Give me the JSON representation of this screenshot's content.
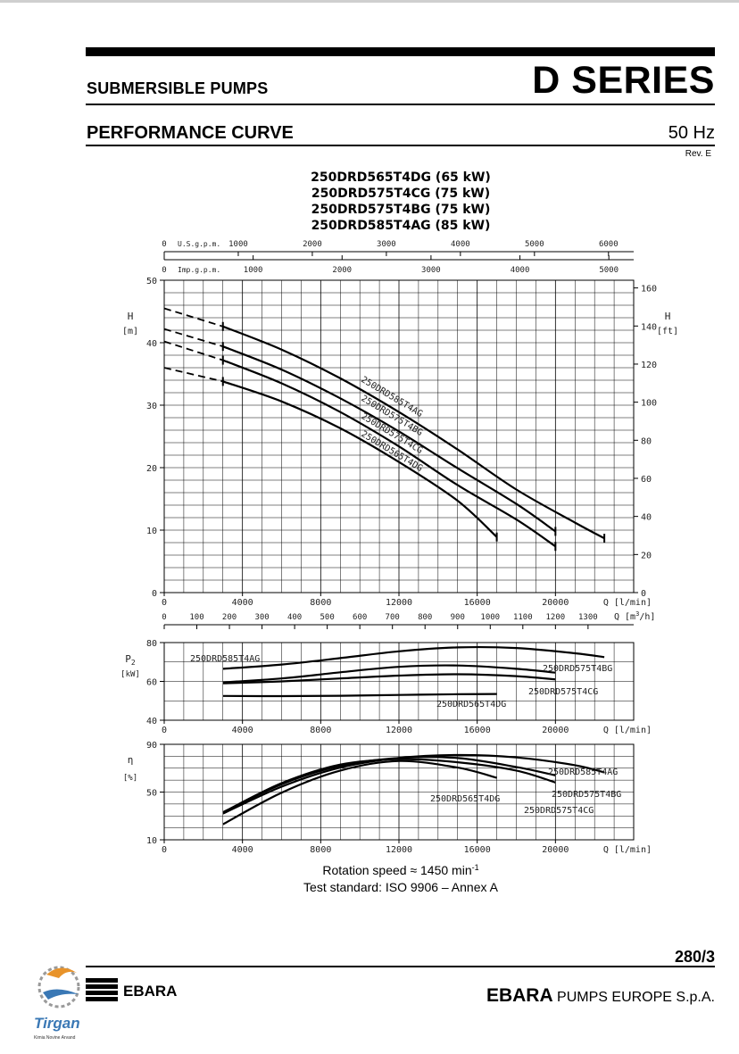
{
  "header": {
    "subtitle": "SUBMERSIBLE PUMPS",
    "series": "D SERIES",
    "section": "PERFORMANCE CURVE",
    "frequency": "50 Hz",
    "revision": "Rev. E"
  },
  "models": [
    "250DRD565T4DG (65 kW)",
    "250DRD575T4CG (75 kW)",
    "250DRD575T4BG (75 kW)",
    "250DRD585T4AG (85 kW)"
  ],
  "footer": {
    "rotation": "Rotation speed ≈ 1450 min",
    "rotation_exp": "-1",
    "standard": "Test standard: ISO 9906 – Annex A",
    "page": "280/3",
    "company_bold": "EBARA",
    "company_rest": " PUMPS EUROPE S.p.A.",
    "ebara_logo_text": "EBARA",
    "tirgan_text": "Tirgan",
    "tirgan_sub": "Kimia Novine Arvand"
  },
  "axes": {
    "usgpm_label": "U.S.g.p.m.",
    "usgpm_ticks": [
      "0",
      "1000",
      "2000",
      "3000",
      "4000",
      "5000",
      "6000"
    ],
    "impgpm_label": "Imp.g.p.m.",
    "impgpm_ticks": [
      "0",
      "1000",
      "2000",
      "3000",
      "4000",
      "5000"
    ],
    "q_lmin_label": "Q [l/min]",
    "q_lmin_ticks": [
      "0",
      "4000",
      "8000",
      "12000",
      "16000",
      "20000"
    ],
    "q_m3h_label_main": "Q [m",
    "q_m3h_label_sup": "3",
    "q_m3h_label_end": "/h]",
    "q_m3h_ticks": [
      "0",
      "100",
      "200",
      "300",
      "400",
      "500",
      "600",
      "700",
      "800",
      "900",
      "1000",
      "1100",
      "1200",
      "1300"
    ],
    "h_m_label": "H",
    "h_m_unit": "[m]",
    "h_m_ticks": [
      "0",
      "10",
      "20",
      "30",
      "40",
      "50"
    ],
    "h_ft_label": "H",
    "h_ft_unit": "[ft]",
    "h_ft_ticks": [
      "0",
      "20",
      "40",
      "60",
      "80",
      "100",
      "120",
      "140",
      "160"
    ],
    "p2_label": "P",
    "p2_sub": "2",
    "p2_unit": "[kW]",
    "p2_ticks": [
      "40",
      "60",
      "80"
    ],
    "eta_label": "η",
    "eta_unit": "[%]",
    "eta_ticks": [
      "10",
      "50",
      "90"
    ]
  },
  "chart_data": [
    {
      "type": "line",
      "title": "H–Q head curve",
      "xlabel": "Q [l/min]",
      "ylabel": "H [m]",
      "xlim": [
        0,
        24000
      ],
      "ylim": [
        0,
        50
      ],
      "secondary_y": {
        "label": "H [ft]",
        "lim": [
          0,
          164
        ]
      },
      "grid": true,
      "note": "dashed segments below Q = 3000 l/min",
      "series": [
        {
          "name": "250DRD585T4AG",
          "x": [
            0,
            3000,
            6000,
            9000,
            12000,
            15000,
            18000,
            21000,
            22500
          ],
          "y": [
            45.5,
            42.6,
            38.9,
            34.3,
            28.9,
            22.9,
            16.5,
            11.2,
            8.7
          ]
        },
        {
          "name": "250DRD575T4BG",
          "x": [
            0,
            3000,
            6000,
            9000,
            12000,
            15000,
            18000,
            20000
          ],
          "y": [
            42.2,
            39.4,
            35.7,
            31.1,
            25.8,
            19.9,
            14.2,
            9.8
          ]
        },
        {
          "name": "250DRD575T4CG",
          "x": [
            0,
            3000,
            6000,
            9000,
            12000,
            15000,
            18000,
            20000
          ],
          "y": [
            40.2,
            37.2,
            33.5,
            28.9,
            23.4,
            17.2,
            11.7,
            7.4
          ]
        },
        {
          "name": "250DRD565T4DG",
          "x": [
            0,
            3000,
            6000,
            9000,
            12000,
            15000,
            17000
          ],
          "y": [
            36.0,
            33.8,
            30.6,
            26.3,
            20.9,
            14.7,
            8.9
          ]
        }
      ]
    },
    {
      "type": "line",
      "title": "P2–Q power curve",
      "xlabel": "Q [l/min]",
      "ylabel": "P2 [kW]",
      "xlim": [
        0,
        24000
      ],
      "ylim": [
        40,
        80
      ],
      "grid": true,
      "series": [
        {
          "name": "250DRD585T4AG",
          "x": [
            3000,
            6000,
            9000,
            12000,
            15000,
            18000,
            21000,
            22500
          ],
          "y": [
            66.5,
            68.7,
            72.0,
            75.5,
            77.5,
            77.2,
            74.5,
            72.5
          ]
        },
        {
          "name": "250DRD575T4BG",
          "x": [
            3000,
            6000,
            9000,
            12000,
            15000,
            18000,
            20000
          ],
          "y": [
            59.5,
            61.5,
            64.7,
            67.5,
            68.2,
            66.5,
            64.5
          ]
        },
        {
          "name": "250DRD575T4CG",
          "x": [
            3000,
            6000,
            9000,
            12000,
            15000,
            18000,
            20000
          ],
          "y": [
            59.0,
            60.0,
            61.5,
            63.0,
            63.7,
            62.7,
            61.0
          ]
        },
        {
          "name": "250DRD565T4DG",
          "x": [
            3000,
            6000,
            9000,
            12000,
            15000,
            17000
          ],
          "y": [
            52.5,
            52.4,
            52.6,
            53.0,
            53.4,
            53.5
          ]
        }
      ]
    },
    {
      "type": "line",
      "title": "η–Q efficiency curve",
      "xlabel": "Q [l/min]",
      "ylabel": "η [%]",
      "xlim": [
        0,
        24000
      ],
      "ylim": [
        10,
        90
      ],
      "grid": true,
      "series": [
        {
          "name": "250DRD585T4AG",
          "x": [
            3000,
            6000,
            9000,
            12000,
            15000,
            18000,
            21000,
            22500
          ],
          "y": [
            32.0,
            54.5,
            70.5,
            78.5,
            81.0,
            79.0,
            72.5,
            66.5
          ]
        },
        {
          "name": "250DRD575T4BG",
          "x": [
            3000,
            6000,
            9000,
            12000,
            15000,
            18000,
            20000
          ],
          "y": [
            33.0,
            56.5,
            72.0,
            78.5,
            78.5,
            71.0,
            64.0
          ]
        },
        {
          "name": "250DRD575T4CG",
          "x": [
            3000,
            6000,
            9000,
            12000,
            15000,
            18000,
            20000
          ],
          "y": [
            33.0,
            57.5,
            73.0,
            77.5,
            75.0,
            68.0,
            58.0
          ]
        },
        {
          "name": "250DRD565T4DG",
          "x": [
            3000,
            6000,
            9000,
            12000,
            15000,
            17000
          ],
          "y": [
            23.0,
            49.5,
            68.0,
            76.0,
            70.5,
            62.0
          ]
        }
      ]
    }
  ],
  "colors": {
    "ink": "#000000",
    "grid": "#000000",
    "orange": "#e8932a",
    "blue": "#3a78b5",
    "gear": "#9a9a9a"
  }
}
